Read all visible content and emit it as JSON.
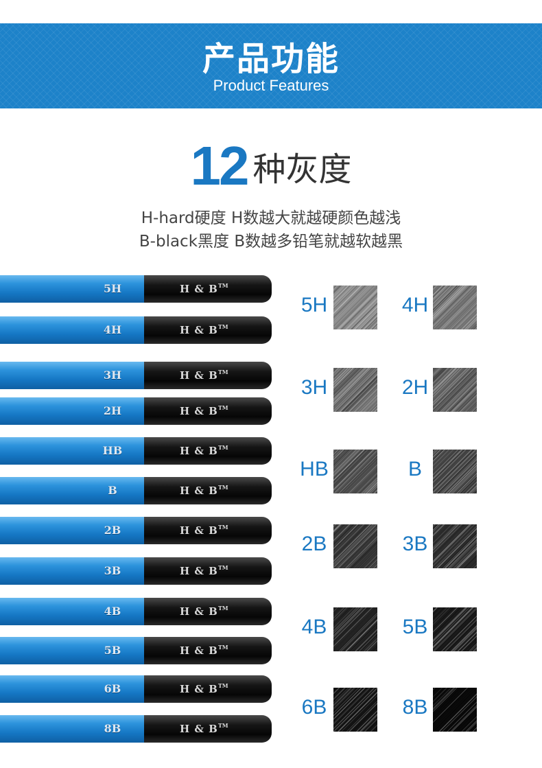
{
  "header": {
    "title": "产品功能",
    "subtitle": "Product Features"
  },
  "headline": {
    "number": "12",
    "text": "种灰度"
  },
  "description": {
    "line1": "H-hard硬度 H数越大就越硬颜色越浅",
    "line2": "B-black黑度 B数越多铅笔就越软越黑"
  },
  "pencil_brand": "H & B",
  "pencil_tm": "TM",
  "pencils": [
    "5H",
    "4H",
    "3H",
    "2H",
    "HB",
    "B",
    "2B",
    "3B",
    "4B",
    "5B",
    "6B",
    "8B"
  ],
  "swatches": [
    {
      "label": "5H",
      "tone": "#8a8a8a"
    },
    {
      "label": "4H",
      "tone": "#7d7d7d"
    },
    {
      "label": "3H",
      "tone": "#6e6e6e"
    },
    {
      "label": "2H",
      "tone": "#626262"
    },
    {
      "label": "HB",
      "tone": "#545454"
    },
    {
      "label": "B",
      "tone": "#474747"
    },
    {
      "label": "2B",
      "tone": "#3a3a3a"
    },
    {
      "label": "3B",
      "tone": "#2f2f2f"
    },
    {
      "label": "4B",
      "tone": "#252525"
    },
    {
      "label": "5B",
      "tone": "#1c1c1c"
    },
    {
      "label": "6B",
      "tone": "#141414"
    },
    {
      "label": "8B",
      "tone": "#0a0a0a"
    }
  ],
  "colors": {
    "banner_blue": "#1d82c9",
    "accent_blue": "#1a78c2",
    "pencil_blue": "#1577c4",
    "pencil_black": "#0a0a0a"
  }
}
